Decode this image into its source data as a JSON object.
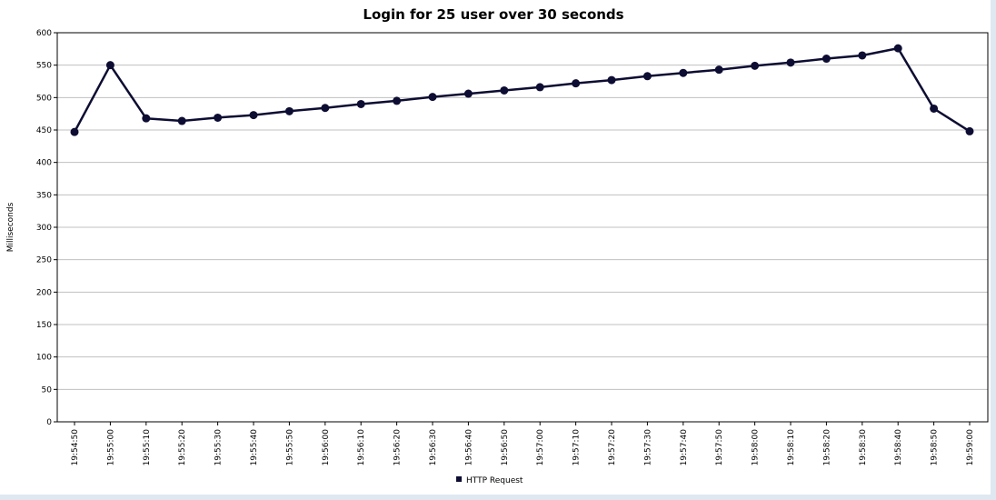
{
  "chart_data": {
    "type": "line",
    "title": "Login for 25 user over 30 seconds",
    "xlabel": "",
    "ylabel": "Milliseconds",
    "ylim": [
      0,
      600
    ],
    "yticks": [
      0,
      50,
      100,
      150,
      200,
      250,
      300,
      350,
      400,
      450,
      500,
      550,
      600
    ],
    "grid": true,
    "legend_position": "bottom-center",
    "categories": [
      "19:54:50",
      "19:55:00",
      "19:55:10",
      "19:55:20",
      "19:55:30",
      "19:55:40",
      "19:55:50",
      "19:56:00",
      "19:56:10",
      "19:56:20",
      "19:56:30",
      "19:56:40",
      "19:56:50",
      "19:57:00",
      "19:57:10",
      "19:57:20",
      "19:57:30",
      "19:57:40",
      "19:57:50",
      "19:58:00",
      "19:58:10",
      "19:58:20",
      "19:58:30",
      "19:58:40",
      "19:58:50",
      "19:59:00"
    ],
    "series": [
      {
        "name": "HTTP Request",
        "color": "#0d0d33",
        "values": [
          447,
          550,
          468,
          464,
          469,
          473,
          479,
          484,
          490,
          495,
          501,
          506,
          511,
          516,
          522,
          527,
          533,
          538,
          543,
          549,
          554,
          560,
          565,
          576,
          483,
          448
        ]
      }
    ]
  }
}
